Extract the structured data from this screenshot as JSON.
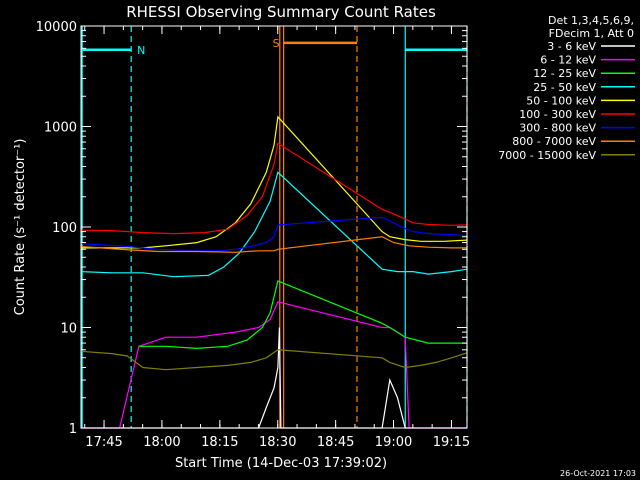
{
  "chart_data": {
    "type": "line",
    "title": "RHESSI Observing Summary Count Rates",
    "xlabel": "Start Time (14-Dec-03 17:39:02)",
    "ylabel": "Count Rate (s⁻¹ detector⁻¹)",
    "yscale": "log",
    "ylim": [
      1,
      10000
    ],
    "xlim_minutes_after_1739": [
      0,
      100
    ],
    "x_ticks": [
      {
        "label": "17:45",
        "t": 5.97
      },
      {
        "label": "18:00",
        "t": 20.97
      },
      {
        "label": "18:15",
        "t": 35.97
      },
      {
        "label": "18:30",
        "t": 50.97
      },
      {
        "label": "18:45",
        "t": 65.97
      },
      {
        "label": "19:00",
        "t": 80.97
      },
      {
        "label": "19:15",
        "t": 95.97
      }
    ],
    "y_ticks": [
      {
        "label": "1",
        "v": 1
      },
      {
        "label": "10",
        "v": 10
      },
      {
        "label": "100",
        "v": 100
      },
      {
        "label": "1000",
        "v": 1000
      },
      {
        "label": "10000",
        "v": 10000
      }
    ],
    "legend_header": [
      "Det 1,3,4,5,6,9,",
      "FDecim 1, Att 0"
    ],
    "series": [
      {
        "name": "3 - 6 keV",
        "color": "#ffffff",
        "points": [
          [
            0,
            1
          ],
          [
            46,
            1
          ],
          [
            48,
            1.6
          ],
          [
            50,
            2.5
          ],
          [
            51,
            4
          ],
          [
            51.4,
            10
          ],
          [
            51.8,
            1
          ],
          [
            73,
            1
          ],
          [
            78,
            1
          ],
          [
            80,
            3
          ],
          [
            82,
            2
          ],
          [
            84,
            1
          ],
          [
            100,
            1
          ]
        ]
      },
      {
        "name": "6 - 12 keV",
        "color": "#ff00ff",
        "points": [
          [
            0,
            1
          ],
          [
            8,
            1
          ],
          [
            10,
            1
          ],
          [
            15,
            6.5
          ],
          [
            22,
            8
          ],
          [
            30,
            8
          ],
          [
            40,
            9
          ],
          [
            46,
            10
          ],
          [
            49,
            12
          ],
          [
            51,
            18
          ],
          [
            78,
            10
          ],
          [
            80,
            10
          ],
          [
            82,
            9
          ],
          [
            84,
            8
          ],
          [
            85,
            1
          ],
          [
            100,
            1
          ]
        ]
      },
      {
        "name": "12 - 25 keV",
        "color": "#00ff00",
        "points": [
          [
            15,
            6.5
          ],
          [
            22,
            6.5
          ],
          [
            30,
            6.2
          ],
          [
            38,
            6.5
          ],
          [
            43,
            7.5
          ],
          [
            47,
            10
          ],
          [
            49,
            14
          ],
          [
            51,
            29
          ],
          [
            78,
            11
          ],
          [
            80,
            10
          ],
          [
            84,
            8
          ],
          [
            90,
            7
          ],
          [
            100,
            7
          ]
        ]
      },
      {
        "name": "25 - 50 keV",
        "color": "#00ffff",
        "points": [
          [
            0,
            36
          ],
          [
            8,
            35
          ],
          [
            16,
            35
          ],
          [
            24,
            32
          ],
          [
            33,
            33
          ],
          [
            37,
            40
          ],
          [
            41,
            55
          ],
          [
            45,
            90
          ],
          [
            49,
            180
          ],
          [
            51,
            350
          ],
          [
            78,
            38
          ],
          [
            82,
            36
          ],
          [
            86,
            36
          ],
          [
            90,
            34
          ],
          [
            96,
            36
          ],
          [
            100,
            38
          ]
        ]
      },
      {
        "name": "50 - 100 keV",
        "color": "#ffff00",
        "points": [
          [
            0,
            62
          ],
          [
            10,
            62
          ],
          [
            16,
            62
          ],
          [
            22,
            65
          ],
          [
            30,
            70
          ],
          [
            35,
            80
          ],
          [
            40,
            110
          ],
          [
            44,
            170
          ],
          [
            48,
            350
          ],
          [
            50,
            650
          ],
          [
            51,
            1250
          ],
          [
            78,
            90
          ],
          [
            80,
            80
          ],
          [
            84,
            75
          ],
          [
            88,
            72
          ],
          [
            94,
            72
          ],
          [
            100,
            74
          ]
        ]
      },
      {
        "name": "100 - 300 keV",
        "color": "#ff0000",
        "points": [
          [
            0,
            93
          ],
          [
            8,
            92
          ],
          [
            16,
            88
          ],
          [
            24,
            86
          ],
          [
            32,
            88
          ],
          [
            38,
            95
          ],
          [
            43,
            130
          ],
          [
            47,
            200
          ],
          [
            50,
            420
          ],
          [
            51,
            680
          ],
          [
            78,
            150
          ],
          [
            80,
            140
          ],
          [
            83,
            125
          ],
          [
            86,
            110
          ],
          [
            90,
            106
          ],
          [
            96,
            104
          ],
          [
            100,
            105
          ]
        ]
      },
      {
        "name": "300 - 800 keV",
        "color": "#0000ff",
        "points": [
          [
            0,
            68
          ],
          [
            10,
            65
          ],
          [
            20,
            60
          ],
          [
            28,
            58
          ],
          [
            36,
            58
          ],
          [
            40,
            60
          ],
          [
            44,
            64
          ],
          [
            48,
            70
          ],
          [
            50,
            80
          ],
          [
            51,
            105
          ],
          [
            78,
            125
          ],
          [
            80,
            115
          ],
          [
            83,
            100
          ],
          [
            86,
            90
          ],
          [
            90,
            86
          ],
          [
            96,
            84
          ],
          [
            100,
            82
          ]
        ]
      },
      {
        "name": "800 - 7000 keV",
        "color": "#ff8000",
        "points": [
          [
            0,
            64
          ],
          [
            10,
            60
          ],
          [
            20,
            57
          ],
          [
            30,
            57
          ],
          [
            40,
            56
          ],
          [
            46,
            58
          ],
          [
            50,
            58
          ],
          [
            51,
            60
          ],
          [
            78,
            80
          ],
          [
            81,
            70
          ],
          [
            85,
            65
          ],
          [
            90,
            63
          ],
          [
            96,
            62
          ],
          [
            100,
            62
          ]
        ]
      },
      {
        "name": "7000 - 15000 keV",
        "color": "#808000",
        "points": [
          [
            0,
            5.8
          ],
          [
            8,
            5.5
          ],
          [
            12,
            5.2
          ],
          [
            16,
            4
          ],
          [
            22,
            3.8
          ],
          [
            30,
            4
          ],
          [
            38,
            4.2
          ],
          [
            44,
            4.5
          ],
          [
            48,
            5
          ],
          [
            51,
            6
          ],
          [
            78,
            5
          ],
          [
            80,
            4.5
          ],
          [
            84,
            4
          ],
          [
            88,
            4.2
          ],
          [
            92,
            4.5
          ],
          [
            96,
            5
          ],
          [
            100,
            5.6
          ]
        ]
      }
    ],
    "annotations": {
      "N": {
        "label": "N",
        "color": "#00ffff",
        "t_start": 0,
        "t_end": 13,
        "level": 5800
      },
      "N2": {
        "t_start": 84,
        "t_end": 100,
        "level": 5800
      },
      "S": {
        "label": "S",
        "color": "#ff8000",
        "t_start": 52.5,
        "t_end": 71.5,
        "level": 6800
      }
    },
    "timestamp": "26-Oct-2021 17:03"
  }
}
